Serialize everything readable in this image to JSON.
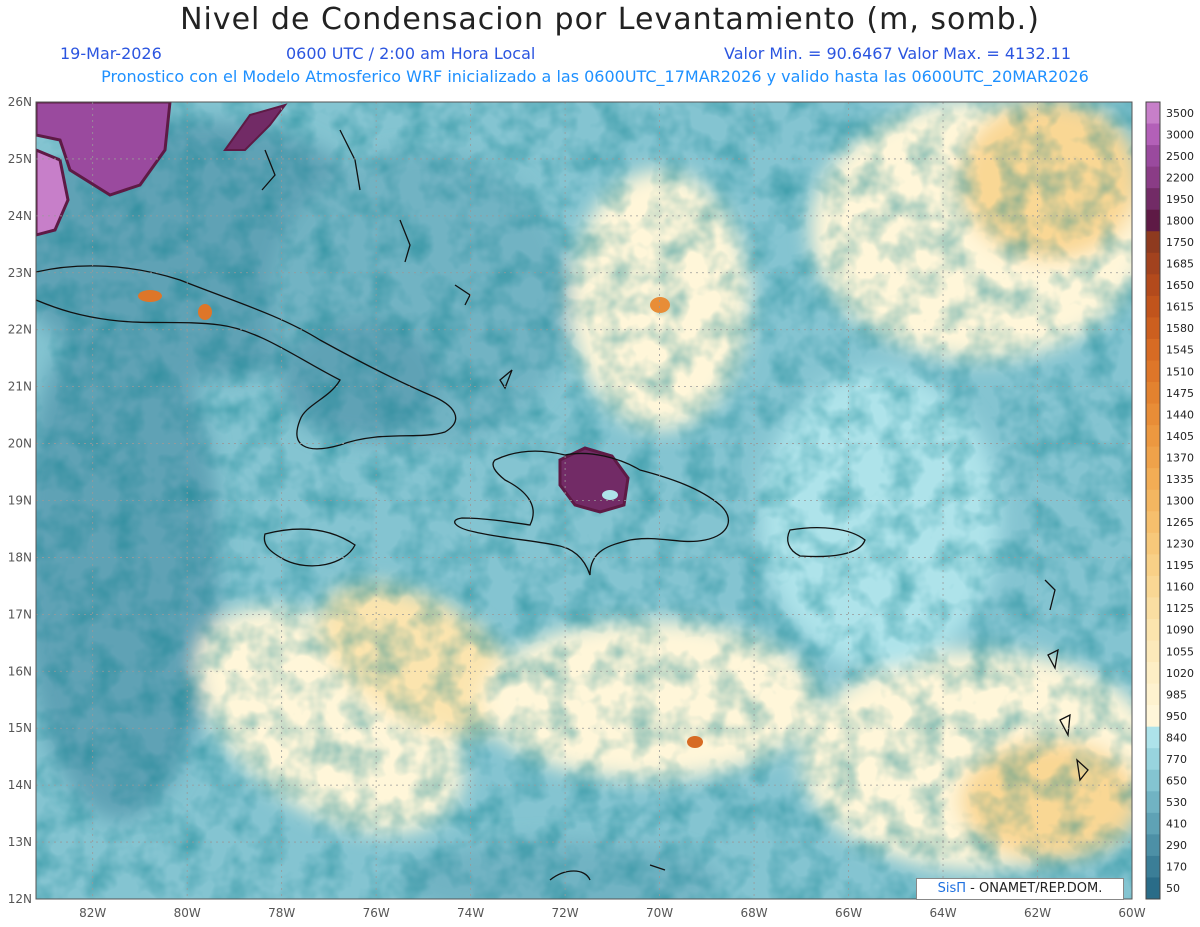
{
  "title": "Nivel de Condensacion por Levantamiento (m, somb.)",
  "header": {
    "date": "19-Mar-2026",
    "time": "0600 UTC / 2:00 am Hora Local",
    "minmax": "Valor Min. = 90.6467   Valor Max. = 4132.11",
    "forecast": "Pronostico con el Modelo Atmosferico WRF inicializado a las 0600UTC_17MAR2026 y valido hasta las  0600UTC_20MAR2026"
  },
  "credit": {
    "brand": "SisΠ",
    "text": "- ONAMET/REP.DOM."
  },
  "map": {
    "lat_labels": [
      "26N",
      "25N",
      "24N",
      "23N",
      "22N",
      "21N",
      "20N",
      "19N",
      "18N",
      "17N",
      "16N",
      "15N",
      "14N",
      "13N",
      "12N"
    ],
    "lon_labels": [
      "82W",
      "80W",
      "78W",
      "76W",
      "74W",
      "72W",
      "70W",
      "68W",
      "66W",
      "64W",
      "62W",
      "60W"
    ],
    "lat_range": [
      12,
      26
    ],
    "lon_range": [
      -83.2,
      -60
    ]
  },
  "colorbar": {
    "labels": [
      "3500",
      "3000",
      "2500",
      "2200",
      "1950",
      "1800",
      "1750",
      "1685",
      "1650",
      "1615",
      "1580",
      "1545",
      "1510",
      "1475",
      "1440",
      "1405",
      "1370",
      "1335",
      "1300",
      "1265",
      "1230",
      "1195",
      "1160",
      "1125",
      "1090",
      "1055",
      "1020",
      "985",
      "950",
      "840",
      "770",
      "650",
      "530",
      "410",
      "290",
      "170",
      "50"
    ],
    "colors": [
      "#c77fc9",
      "#b360b8",
      "#9a4a9e",
      "#8a3c86",
      "#722b66",
      "#5e1a45",
      "#8e3a1f",
      "#a2421e",
      "#b34a1c",
      "#c1541c",
      "#cc5f1f",
      "#d76b24",
      "#de7629",
      "#e3822f",
      "#e88d37",
      "#ec9840",
      "#efa24a",
      "#f2ad55",
      "#f4b661",
      "#f6bf6d",
      "#f7c87a",
      "#f8d087",
      "#f9d794",
      "#fadea2",
      "#fbe4ae",
      "#fce9ba",
      "#fdeec5",
      "#fef2cf",
      "#fff6d9",
      "#aee3ea",
      "#98d4de",
      "#84c4d1",
      "#71b3c3",
      "#5fa2b5",
      "#4d90a6",
      "#3b7e97",
      "#2a6c88"
    ]
  }
}
